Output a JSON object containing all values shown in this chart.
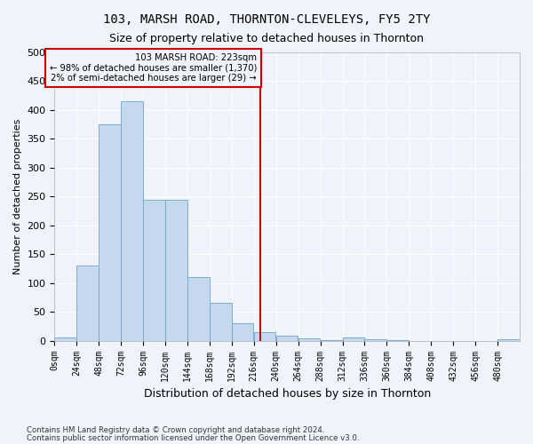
{
  "title": "103, MARSH ROAD, THORNTON-CLEVELEYS, FY5 2TY",
  "subtitle": "Size of property relative to detached houses in Thornton",
  "xlabel": "Distribution of detached houses by size in Thornton",
  "ylabel": "Number of detached properties",
  "footer1": "Contains HM Land Registry data © Crown copyright and database right 2024.",
  "footer2": "Contains public sector information licensed under the Open Government Licence v3.0.",
  "bin_labels": [
    "0sqm",
    "24sqm",
    "48sqm",
    "72sqm",
    "96sqm",
    "120sqm",
    "144sqm",
    "168sqm",
    "192sqm",
    "216sqm",
    "240sqm",
    "264sqm",
    "288sqm",
    "312sqm",
    "336sqm",
    "360sqm",
    "384sqm",
    "408sqm",
    "432sqm",
    "456sqm",
    "480sqm"
  ],
  "bar_values": [
    5,
    130,
    375,
    415,
    245,
    245,
    110,
    65,
    30,
    15,
    8,
    4,
    1,
    5,
    2,
    1,
    0,
    0,
    0,
    0,
    3
  ],
  "bar_color": "#c5d8ed",
  "bar_edge_color": "#7aadd4",
  "property_line_x": 223,
  "bin_width": 24,
  "annotation_title": "103 MARSH ROAD: 223sqm",
  "annotation_line1": "← 98% of detached houses are smaller (1,370)",
  "annotation_line2": "2% of semi-detached houses are larger (29) →",
  "annotation_box_color": "#cc0000",
  "ylim": [
    0,
    500
  ],
  "yticks": [
    0,
    50,
    100,
    150,
    200,
    250,
    300,
    350,
    400,
    450,
    500
  ],
  "background_color": "#f0f4fa",
  "grid_color": "#ffffff"
}
